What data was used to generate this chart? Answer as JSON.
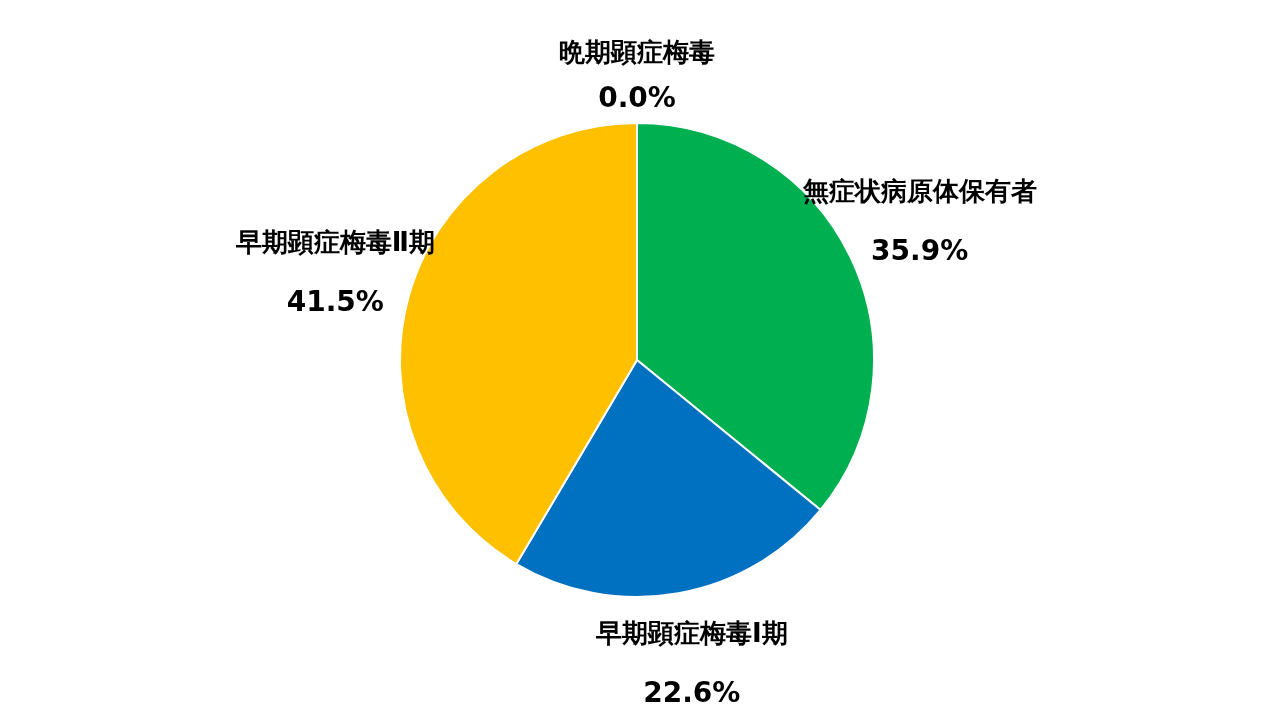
{
  "chart_data": {
    "type": "pie",
    "categories": [
      "無症状病原体保有者",
      "早期顕症梅毒Ⅰ期",
      "早期顕症梅毒Ⅱ期",
      "晩期顕症梅毒"
    ],
    "values": [
      35.9,
      22.6,
      41.5,
      0.0
    ],
    "colors": [
      "#00b050",
      "#0070c0",
      "#ffc000",
      "#c00000"
    ],
    "value_labels": [
      "35.9%",
      "22.6%",
      "41.5%",
      "0.0%"
    ]
  }
}
